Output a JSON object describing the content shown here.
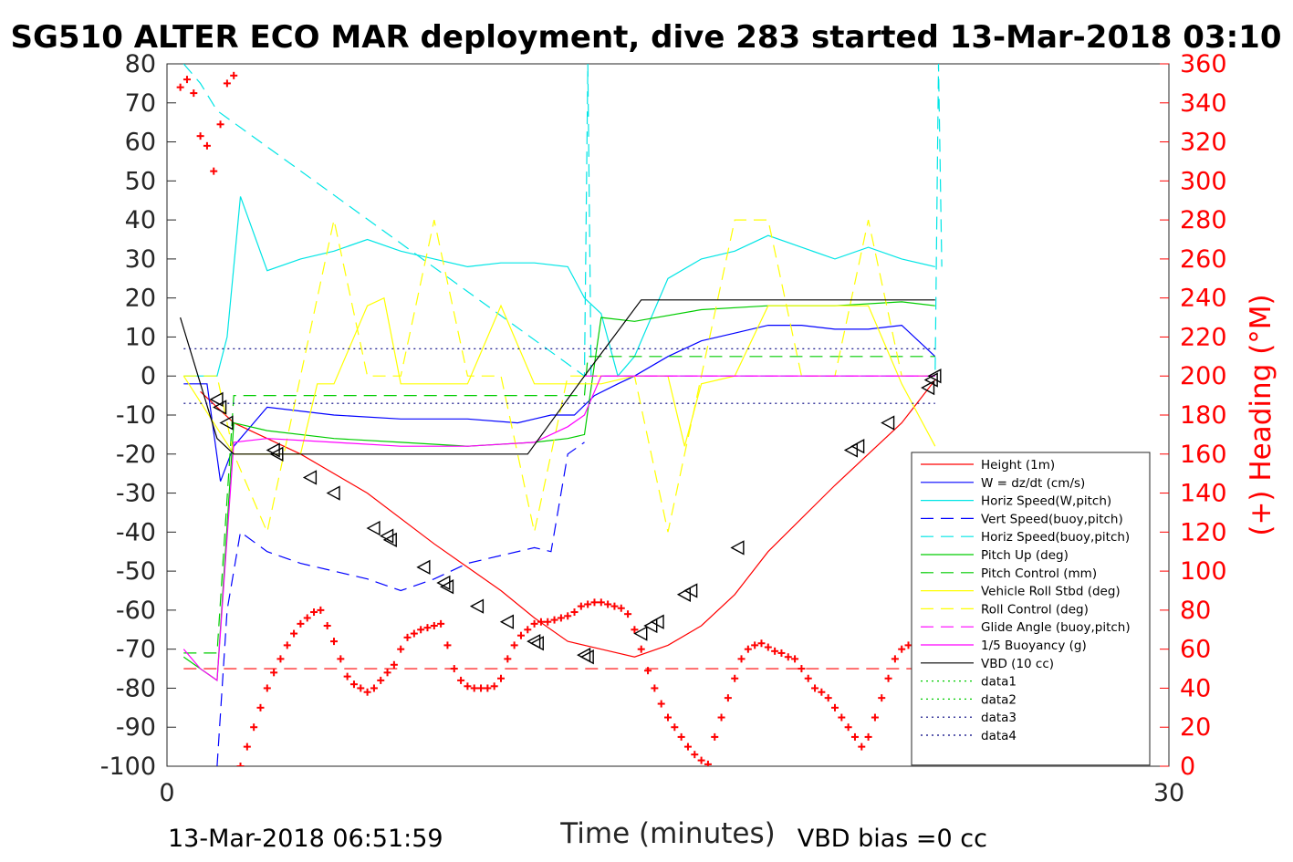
{
  "chart_data": {
    "type": "line",
    "title": "SG510 ALTER ECO MAR deployment, dive 283 started 13-Mar-2018 03:10",
    "xlabel": "Time (minutes)",
    "ylabel_right": "(+) Heading (°M)",
    "xlim": [
      0,
      30
    ],
    "ylim_left": [
      -100,
      80
    ],
    "ylim_right": [
      0,
      360
    ],
    "x_ticks": [
      "0",
      "30"
    ],
    "y_ticks_left": [
      "80",
      "70",
      "60",
      "50",
      "40",
      "30",
      "20",
      "10",
      "0",
      "-10",
      "-20",
      "-30",
      "-40",
      "-50",
      "-60",
      "-70",
      "-80",
      "-90",
      "-100"
    ],
    "y_ticks_right": [
      "360",
      "340",
      "320",
      "300",
      "280",
      "260",
      "240",
      "220",
      "200",
      "180",
      "160",
      "140",
      "120",
      "100",
      "80",
      "60",
      "40",
      "20",
      "0"
    ],
    "footer_left": "13-Mar-2018 06:51:59",
    "footer_right": "VBD bias =0 cc",
    "legend_position": "lower-right",
    "series": [
      {
        "name": "Height (1m)",
        "color": "#ff0000",
        "style": "solid",
        "x": [
          1.0,
          2.0,
          4.0,
          6.0,
          8.0,
          10.0,
          11.0,
          12.0,
          13.0,
          14.0,
          15.0,
          16.0,
          17.0,
          18.0,
          20.0,
          22.0,
          23.0
        ],
        "values": [
          -4,
          -12,
          -20,
          -30,
          -43,
          -55,
          -62,
          -68,
          -70,
          -72,
          -69,
          -64,
          -56,
          -45,
          -28,
          -12,
          -1
        ]
      },
      {
        "name": "W = dz/dt (cm/s)",
        "color": "#0000ff",
        "style": "solid",
        "x": [
          0.5,
          1.2,
          1.6,
          2.0,
          3.0,
          5.0,
          7.0,
          9.0,
          10.5,
          11.0,
          11.5,
          12.2,
          12.8,
          13.5,
          14.0,
          15.0,
          16.0,
          17.0,
          18.0,
          19.0,
          20.0,
          21.0,
          22.0,
          23.0
        ],
        "values": [
          -2,
          -2,
          -27,
          -18,
          -8,
          -10,
          -11,
          -11,
          -12,
          -11,
          -10,
          -10,
          -5,
          -2,
          0,
          5,
          9,
          11,
          13,
          13,
          12,
          12,
          13,
          5
        ]
      },
      {
        "name": "Horiz Speed(W,pitch)",
        "color": "#00e5e5",
        "style": "solid",
        "x": [
          0.5,
          1.5,
          1.8,
          2.2,
          3.0,
          4.0,
          5.0,
          6.0,
          7.0,
          8.0,
          9.0,
          10.0,
          11.0,
          12.0,
          12.5,
          13.0,
          13.5,
          14.0,
          15.0,
          16.0,
          17.0,
          18.0,
          19.0,
          20.0,
          21.0,
          22.0,
          23.0
        ],
        "values": [
          0,
          0,
          10,
          46,
          27,
          30,
          32,
          35,
          32,
          30,
          28,
          29,
          29,
          28,
          20,
          16,
          0,
          5,
          25,
          30,
          32,
          36,
          33,
          30,
          33,
          30,
          28
        ]
      },
      {
        "name": "Vert Speed(buoy,pitch)",
        "color": "#0000ff",
        "style": "dashed",
        "x": [
          1.5,
          1.8,
          2.2,
          3.0,
          4.0,
          5.0,
          6.0,
          7.0,
          8.0,
          9.0,
          10.0,
          11.0,
          11.5,
          12.0,
          12.5
        ],
        "values": [
          -100,
          -60,
          -40,
          -45,
          -48,
          -50,
          -52,
          -55,
          -52,
          -48,
          -46,
          -44,
          -45,
          -20,
          -17
        ]
      },
      {
        "name": "Horiz Speed(buoy,pitch)",
        "color": "#00e5e5",
        "style": "dashed",
        "x": [
          0.5,
          1.0,
          1.5,
          12.5,
          12.6,
          12.7,
          23.0,
          23.1,
          23.2
        ],
        "values": [
          80,
          75,
          68,
          0,
          80,
          0,
          0,
          80,
          28
        ]
      },
      {
        "name": "Pitch Up (deg)",
        "color": "#00cc00",
        "style": "solid",
        "x": [
          0.5,
          1.0,
          1.5,
          2.0,
          3.0,
          5.0,
          7.0,
          9.0,
          11.0,
          12.0,
          12.5,
          13.0,
          14.0,
          16.0,
          18.0,
          20.0,
          22.0,
          23.0
        ],
        "values": [
          -72,
          -75,
          -78,
          -12,
          -14,
          -16,
          -17,
          -18,
          -17,
          -16,
          -15,
          15,
          14,
          17,
          18,
          18,
          19,
          18
        ]
      },
      {
        "name": "Pitch Control (mm)",
        "color": "#00cc00",
        "style": "dashed",
        "x": [
          0.5,
          1.5,
          2.0,
          2.2,
          12.5,
          12.6,
          23.0
        ],
        "values": [
          -71,
          -71,
          -5,
          -5,
          -5,
          5,
          5
        ]
      },
      {
        "name": "Vehicle Roll Stbd (deg)",
        "color": "#ffff00",
        "style": "solid",
        "x": [
          0.5,
          2.0,
          3.0,
          4.0,
          4.5,
          5.0,
          6.0,
          6.5,
          7.0,
          8.0,
          9.0,
          10.0,
          11.0,
          12.0,
          13.0,
          14.0,
          15.0,
          15.5,
          16.0,
          17.0,
          18.0,
          19.0,
          20.0,
          21.0,
          22.0,
          23.0
        ],
        "values": [
          0,
          -20,
          -20,
          -20,
          -2,
          -2,
          18,
          20,
          -2,
          -2,
          -2,
          18,
          -2,
          -2,
          -2,
          0,
          0,
          -18,
          -2,
          0,
          18,
          18,
          18,
          18,
          -2,
          -18
        ]
      },
      {
        "name": "Roll Control (deg)",
        "color": "#ffff00",
        "style": "dashed",
        "x": [
          0.5,
          1.5,
          2.0,
          3.0,
          4.0,
          5.0,
          6.0,
          7.0,
          8.0,
          9.0,
          10.0,
          11.0,
          12.0,
          13.0,
          14.0,
          15.0,
          16.0,
          17.0,
          18.0,
          19.0,
          20.0,
          21.0,
          22.0,
          23.0
        ],
        "values": [
          0,
          0,
          -20,
          -40,
          0,
          40,
          0,
          0,
          40,
          0,
          0,
          -40,
          0,
          0,
          0,
          -40,
          0,
          40,
          40,
          0,
          0,
          40,
          0,
          0
        ]
      },
      {
        "name": "Glide Angle (buoy,pitch)",
        "color": "#ff00ff",
        "style": "dashed",
        "x": [
          12.5,
          23.0
        ],
        "values": [
          0,
          0
        ]
      },
      {
        "name": "1/5 Buoyancy (g)",
        "color": "#ff00ff",
        "style": "solid",
        "x": [
          0.5,
          1.0,
          1.5,
          2.0,
          3.0,
          5.0,
          7.0,
          9.0,
          11.0,
          12.0,
          12.5,
          13.0,
          23.0
        ],
        "values": [
          -70,
          -75,
          -78,
          -17,
          -16,
          -17,
          -18,
          -18,
          -17,
          -13,
          -10,
          0,
          0
        ]
      },
      {
        "name": "VBD (10 cc)",
        "color": "#000000",
        "style": "solid",
        "x": [
          0.4,
          1.5,
          2.0,
          10.8,
          12.5,
          14.2,
          23.0
        ],
        "values": [
          15,
          -16,
          -20,
          -20,
          0,
          19.5,
          19.5
        ]
      },
      {
        "name": "data1",
        "color": "#00cc00",
        "style": "dotted",
        "x": [],
        "values": []
      },
      {
        "name": "data2",
        "color": "#00cc00",
        "style": "dotted",
        "x": [],
        "values": []
      },
      {
        "name": "data3",
        "color": "#000080",
        "style": "dotted",
        "x": [
          0.5,
          23.0
        ],
        "values": [
          7,
          7
        ]
      },
      {
        "name": "data4",
        "color": "#000080",
        "style": "dotted",
        "x": [
          0.5,
          23.0
        ],
        "values": [
          -7,
          -7
        ]
      }
    ],
    "heading_series": {
      "name": "Heading",
      "color": "#ff0000",
      "marker": "+",
      "axis": "right",
      "x": [
        0.4,
        0.6,
        0.8,
        1.0,
        1.2,
        1.4,
        1.6,
        1.8,
        2.0,
        2.2,
        2.4,
        2.6,
        2.8,
        3.0,
        3.2,
        3.4,
        3.6,
        3.8,
        4.0,
        4.2,
        4.4,
        4.6,
        4.8,
        5.0,
        5.2,
        5.4,
        5.6,
        5.8,
        6.0,
        6.2,
        6.4,
        6.6,
        6.8,
        7.0,
        7.2,
        7.4,
        7.6,
        7.8,
        8.0,
        8.2,
        8.4,
        8.6,
        8.8,
        9.0,
        9.2,
        9.4,
        9.6,
        9.8,
        10.0,
        10.2,
        10.4,
        10.6,
        10.8,
        11.0,
        11.2,
        11.4,
        11.6,
        11.8,
        12.0,
        12.2,
        12.4,
        12.6,
        12.8,
        13.0,
        13.2,
        13.4,
        13.6,
        13.8,
        14.0,
        14.2,
        14.4,
        14.6,
        14.8,
        15.0,
        15.2,
        15.4,
        15.6,
        15.8,
        16.0,
        16.2,
        16.4,
        16.6,
        16.8,
        17.0,
        17.2,
        17.4,
        17.6,
        17.8,
        18.0,
        18.2,
        18.4,
        18.6,
        18.8,
        19.0,
        19.2,
        19.4,
        19.6,
        19.8,
        20.0,
        20.2,
        20.4,
        20.6,
        20.8,
        21.0,
        21.2,
        21.4,
        21.6,
        21.8,
        22.0,
        22.2,
        22.4
      ],
      "values": [
        348,
        352,
        345,
        323,
        318,
        305,
        329,
        350,
        354,
        0,
        10,
        20,
        30,
        40,
        48,
        55,
        62,
        68,
        73,
        76,
        79,
        80,
        72,
        64,
        55,
        46,
        42,
        40,
        38,
        40,
        44,
        48,
        52,
        60,
        66,
        68,
        70,
        71,
        72,
        73,
        62,
        50,
        44,
        41,
        40,
        40,
        40,
        41,
        45,
        55,
        62,
        67,
        70,
        73,
        74,
        74,
        75,
        76,
        77,
        79,
        82,
        83,
        84,
        84,
        83,
        82,
        81,
        78,
        70,
        60,
        49,
        40,
        32,
        25,
        20,
        15,
        10,
        6,
        3,
        1,
        15,
        25,
        35,
        45,
        55,
        60,
        62,
        63,
        61,
        59,
        58,
        56,
        55,
        50,
        45,
        40,
        38,
        35,
        30,
        25,
        20,
        15,
        10,
        15,
        25,
        35,
        45,
        55,
        60,
        62,
        63
      ]
    },
    "triangle_markers": {
      "marker": "triangle-left",
      "color": "#000000",
      "x": [
        1.5,
        1.6,
        1.8,
        3.2,
        3.3,
        4.3,
        5.0,
        6.2,
        6.6,
        6.7,
        7.7,
        8.3,
        8.4,
        9.3,
        10.2,
        11.0,
        11.1,
        12.5,
        12.6,
        14.2,
        14.5,
        14.7,
        15.5,
        15.7,
        17.1,
        20.5,
        20.7,
        21.6,
        22.8,
        22.9,
        23.0
      ],
      "values": [
        -6,
        -8,
        -12,
        -19,
        -20,
        -26,
        -30,
        -39,
        -41,
        -42,
        -49,
        -53,
        -54,
        -59,
        -63,
        -68,
        -68.5,
        -71.5,
        -72,
        -66,
        -64,
        -63,
        -56,
        -55,
        -44,
        -19,
        -18,
        -12,
        -3,
        -1,
        0
      ]
    }
  }
}
